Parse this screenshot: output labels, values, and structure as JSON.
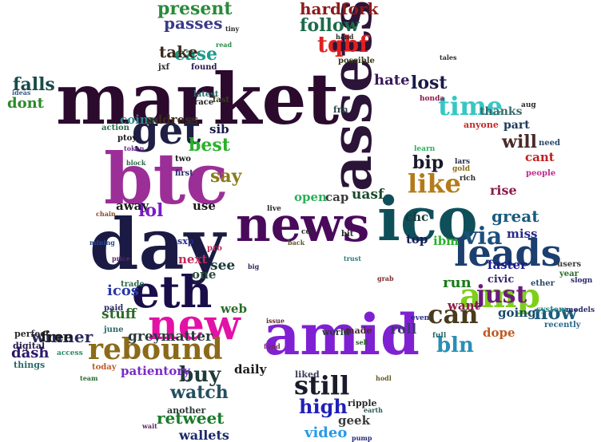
{
  "words": [
    {
      "text": "market",
      "color": "#2b0a2e"
    },
    {
      "text": "assets",
      "color": "#2b1437"
    },
    {
      "text": "btc",
      "color": "#9b2f97"
    },
    {
      "text": "day",
      "color": "#1a1a44"
    },
    {
      "text": "news",
      "color": "#4a0a5c"
    },
    {
      "text": "ico",
      "color": "#0f4f5a"
    },
    {
      "text": "amid",
      "color": "#7f21d2"
    },
    {
      "text": "leads",
      "color": "#1c3f6f"
    },
    {
      "text": "eth",
      "color": "#1a0e4a"
    },
    {
      "text": "new",
      "color": "#e312a6"
    },
    {
      "text": "rebound",
      "color": "#8b6b1a"
    },
    {
      "text": "get",
      "color": "#1e1f43"
    },
    {
      "text": "amp",
      "color": "#7ecf1a"
    },
    {
      "text": "time",
      "color": "#36c7c4"
    },
    {
      "text": "like",
      "color": "#b47b1a"
    },
    {
      "text": "just",
      "color": "#6a1b7a"
    },
    {
      "text": "via",
      "color": "#1c4f7c"
    },
    {
      "text": "can",
      "color": "#4a3a1c"
    },
    {
      "text": "still",
      "color": "#1a1a2c"
    },
    {
      "text": "bln",
      "color": "#2a8fb6"
    },
    {
      "text": "buy",
      "color": "#1f3a3a"
    },
    {
      "text": "watch",
      "color": "#254e60"
    },
    {
      "text": "high",
      "color": "#2020b8"
    },
    {
      "text": "now",
      "color": "#1e5c7c"
    },
    {
      "text": "tqbf",
      "color": "#e02020"
    },
    {
      "text": "hardfork",
      "color": "#8b1a1a"
    },
    {
      "text": "present",
      "color": "#2a8a3a"
    },
    {
      "text": "passes",
      "color": "#3a3a8a"
    },
    {
      "text": "case",
      "color": "#1c9b8a"
    },
    {
      "text": "take",
      "color": "#3a2a1a"
    },
    {
      "text": "follow",
      "color": "#1b6b4a"
    },
    {
      "text": "lost",
      "color": "#1a1a4a"
    },
    {
      "text": "hate",
      "color": "#3a1a5a"
    },
    {
      "text": "falls",
      "color": "#1a4a4a"
    },
    {
      "text": "dont",
      "color": "#2a8a2a"
    },
    {
      "text": "coins",
      "color": "#2a8a8a"
    },
    {
      "text": "address",
      "color": "#3a2a1a"
    },
    {
      "text": "best",
      "color": "#2ab02a"
    },
    {
      "text": "sib",
      "color": "#1a1a4a"
    },
    {
      "text": "say",
      "color": "#8b7b1a"
    },
    {
      "text": "lol",
      "color": "#7a1ac8"
    },
    {
      "text": "bip",
      "color": "#1a1a2a"
    },
    {
      "text": "will",
      "color": "#4a2a2a"
    },
    {
      "text": "part",
      "color": "#1a3a5a"
    },
    {
      "text": "thanks",
      "color": "#3a6a6a"
    },
    {
      "text": "rise",
      "color": "#8a1a4a"
    },
    {
      "text": "cant",
      "color": "#c02020"
    },
    {
      "text": "open",
      "color": "#2ab05a"
    },
    {
      "text": "cap",
      "color": "#3a3a3a"
    },
    {
      "text": "uasf",
      "color": "#1a4a2a"
    },
    {
      "text": "chc",
      "color": "#1a3a3a"
    },
    {
      "text": "great",
      "color": "#1a5a7a"
    },
    {
      "text": "miss",
      "color": "#2a2a8a"
    },
    {
      "text": "faster",
      "color": "#1a1a8a"
    },
    {
      "text": "ibm",
      "color": "#2ab02a"
    },
    {
      "text": "top",
      "color": "#1a1a5a"
    },
    {
      "text": "run",
      "color": "#1a7a1a"
    },
    {
      "text": "civic",
      "color": "#3a2a6a"
    },
    {
      "text": "want",
      "color": "#8a1a4a"
    },
    {
      "text": "going",
      "color": "#1a4a6a"
    },
    {
      "text": "dope",
      "color": "#c05a20"
    },
    {
      "text": "roll",
      "color": "#3a3a6a"
    },
    {
      "text": "icos",
      "color": "#2a3aa8"
    },
    {
      "text": "stuff",
      "color": "#2a6a2a"
    },
    {
      "text": "see",
      "color": "#1a3a3a"
    },
    {
      "text": "one",
      "color": "#2a4a3a"
    },
    {
      "text": "next",
      "color": "#c02a5a"
    },
    {
      "text": "use",
      "color": "#1a1a1a"
    },
    {
      "text": "away",
      "color": "#1a1a1a"
    },
    {
      "text": "winner",
      "color": "#2a2a5a"
    },
    {
      "text": "free",
      "color": "#1a1a1a"
    },
    {
      "text": "dash",
      "color": "#2a1a6a"
    },
    {
      "text": "greymatter",
      "color": "#2a3a3a"
    },
    {
      "text": "retweet",
      "color": "#1a7a2a"
    },
    {
      "text": "patientory",
      "color": "#7a2ac8"
    },
    {
      "text": "daily",
      "color": "#1a1a1a"
    },
    {
      "text": "wallets",
      "color": "#1a2a6a"
    },
    {
      "text": "video",
      "color": "#2a9ae8"
    },
    {
      "text": "geek",
      "color": "#3a3a3a"
    },
    {
      "text": "web",
      "color": "#2a6a2a"
    },
    {
      "text": "world",
      "color": "#2a3a3a"
    },
    {
      "text": "made",
      "color": "#4a2a2a"
    },
    {
      "text": "perfect",
      "color": "#2a2a2a"
    },
    {
      "text": "digital",
      "color": "#2a1a4a"
    },
    {
      "text": "things",
      "color": "#2a6a6a"
    },
    {
      "text": "ripple",
      "color": "#2a2a2a"
    },
    {
      "text": "another",
      "color": "#2a3a3a"
    },
    {
      "text": "liked",
      "color": "#3a3a5a"
    },
    {
      "text": "sxp",
      "color": "#2a2a8a"
    },
    {
      "text": "ptoy",
      "color": "#1a1a1a"
    },
    {
      "text": "action",
      "color": "#2a6a4a"
    },
    {
      "text": "latest",
      "color": "#2a6a6a"
    },
    {
      "text": "race",
      "color": "#1a1a1a"
    },
    {
      "text": "found",
      "color": "#2a1a4a"
    },
    {
      "text": "two",
      "color": "#1a1a1a"
    },
    {
      "text": "first",
      "color": "#2a2a6a"
    },
    {
      "text": "frn",
      "color": "#2a4a4a"
    },
    {
      "text": "anyone",
      "color": "#c02a2a"
    },
    {
      "text": "need",
      "color": "#2a4a6a"
    },
    {
      "text": "people",
      "color": "#c02a8a"
    },
    {
      "text": "users",
      "color": "#3a3a3a"
    },
    {
      "text": "year",
      "color": "#2a6a2a"
    },
    {
      "text": "ether",
      "color": "#2a4a6a"
    },
    {
      "text": "system",
      "color": "#2a8a8a"
    },
    {
      "text": "recently",
      "color": "#2a6a8a"
    },
    {
      "text": "models",
      "color": "#2a2a6a"
    },
    {
      "text": "honda",
      "color": "#8a1a4a"
    },
    {
      "text": "jxf",
      "color": "#2a2a2a"
    },
    {
      "text": "fast",
      "color": "#3a3a1a"
    },
    {
      "text": "today",
      "color": "#c05a2a"
    },
    {
      "text": "june",
      "color": "#2a6a6a"
    },
    {
      "text": "paid",
      "color": "#2a2a6a"
    },
    {
      "text": "trade",
      "color": "#2a6a4a"
    },
    {
      "text": "pro",
      "color": "#c02a5a"
    },
    {
      "text": "bit",
      "color": "#2a2a2a"
    },
    {
      "text": "possible",
      "color": "#3a3a1a"
    },
    {
      "text": "gold",
      "color": "#8a6a1a"
    },
    {
      "text": "rich",
      "color": "#2a2a2a"
    },
    {
      "text": "lars",
      "color": "#2a2a4a"
    },
    {
      "text": "learn",
      "color": "#2ab05a"
    },
    {
      "text": "aug",
      "color": "#2a2a2a"
    },
    {
      "text": "full",
      "color": "#2a6a6a"
    },
    {
      "text": "even",
      "color": "#2a2a8a"
    },
    {
      "text": "cdt",
      "color": "#2a2a2a"
    },
    {
      "text": "live",
      "color": "#2a2a2a"
    },
    {
      "text": "slogn",
      "color": "#2a2a6a"
    },
    {
      "text": "access",
      "color": "#2a8a6a"
    },
    {
      "text": "hand",
      "color": "#2a2a2a"
    },
    {
      "text": "tales",
      "color": "#2a2a2a"
    },
    {
      "text": "read",
      "color": "#2a8a4a"
    },
    {
      "text": "tiny",
      "color": "#2a2a2a"
    },
    {
      "text": "ideas",
      "color": "#3a5a8a"
    },
    {
      "text": "token",
      "color": "#6a2a8a"
    },
    {
      "text": "block",
      "color": "#2a6a4a"
    },
    {
      "text": "chain",
      "color": "#8a4a2a"
    },
    {
      "text": "mining",
      "color": "#2a4a8a"
    },
    {
      "text": "price",
      "color": "#5a2a6a"
    },
    {
      "text": "trust",
      "color": "#2a7a7a"
    },
    {
      "text": "grab",
      "color": "#7a2a2a"
    },
    {
      "text": "sell",
      "color": "#2a5a2a"
    },
    {
      "text": "hodl",
      "color": "#6a5a2a"
    },
    {
      "text": "pump",
      "color": "#2a2a7a"
    },
    {
      "text": "fund",
      "color": "#7a2a5a"
    },
    {
      "text": "earth",
      "color": "#2a5a5a"
    },
    {
      "text": "issue",
      "color": "#5a2a2a"
    },
    {
      "text": "big",
      "color": "#2a2a5a"
    },
    {
      "text": "team",
      "color": "#2a6a2a"
    },
    {
      "text": "back",
      "color": "#5a5a2a"
    },
    {
      "text": "wait",
      "color": "#5a2a5a"
    }
  ]
}
